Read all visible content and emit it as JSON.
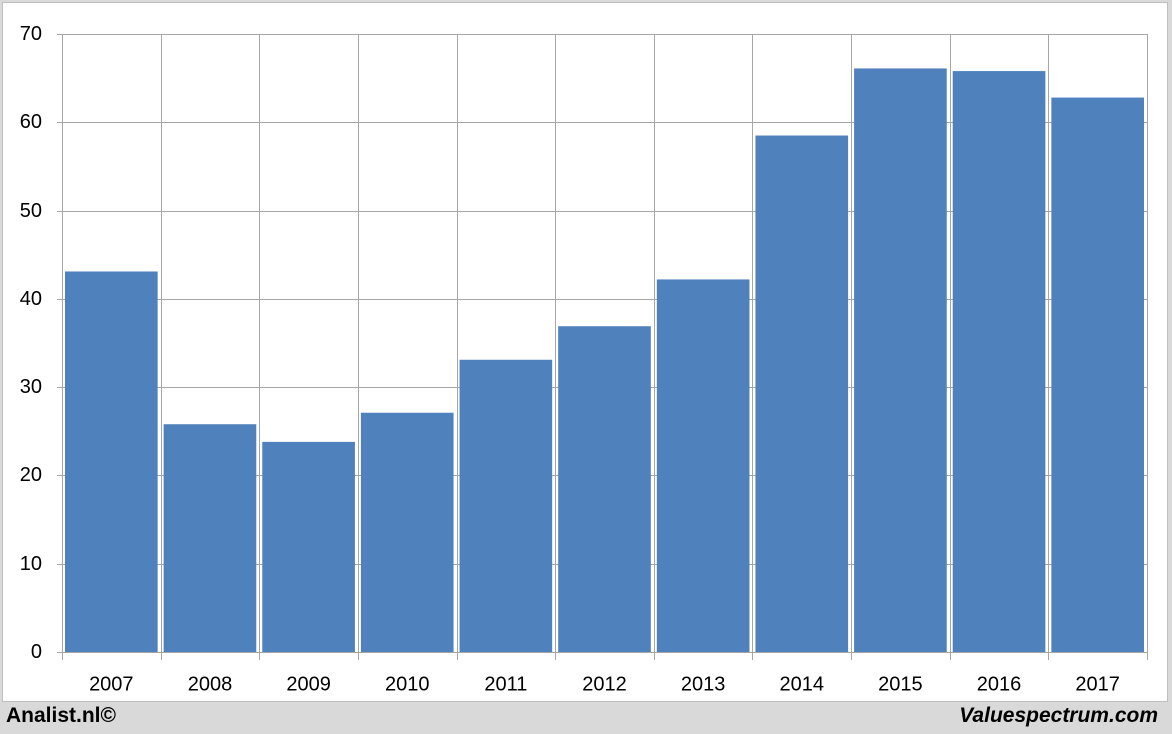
{
  "chart_data": {
    "type": "bar",
    "categories": [
      "2007",
      "2008",
      "2009",
      "2010",
      "2011",
      "2012",
      "2013",
      "2014",
      "2015",
      "2016",
      "2017"
    ],
    "values": [
      43.1,
      25.8,
      23.8,
      27.1,
      33.1,
      36.9,
      42.2,
      58.5,
      66.1,
      65.8,
      62.8
    ],
    "ylim": [
      0,
      70
    ],
    "yticks": [
      0,
      10,
      20,
      30,
      40,
      50,
      60,
      70
    ],
    "title": "",
    "xlabel": "",
    "ylabel": "",
    "grid": true,
    "legend": "none",
    "bar_color": "#4f81bd",
    "grid_color": "#a6a6a6"
  },
  "footer": {
    "left": "Analist.nl©",
    "right": "Valuespectrum.com"
  }
}
